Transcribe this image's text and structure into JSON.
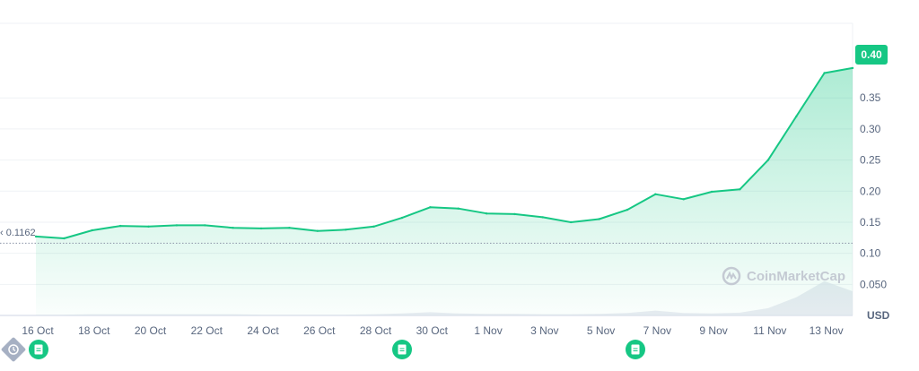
{
  "chart_data": {
    "type": "area",
    "x": [
      "16 Oct",
      "17 Oct",
      "18 Oct",
      "19 Oct",
      "20 Oct",
      "21 Oct",
      "22 Oct",
      "23 Oct",
      "24 Oct",
      "25 Oct",
      "26 Oct",
      "27 Oct",
      "28 Oct",
      "29 Oct",
      "30 Oct",
      "31 Oct",
      "1 Nov",
      "2 Nov",
      "3 Nov",
      "4 Nov",
      "5 Nov",
      "6 Nov",
      "7 Nov",
      "8 Nov",
      "9 Nov",
      "10 Nov",
      "11 Nov",
      "12 Nov",
      "13 Nov",
      "14 Nov"
    ],
    "values": [
      0.127,
      0.124,
      0.137,
      0.144,
      0.143,
      0.145,
      0.145,
      0.141,
      0.14,
      0.141,
      0.136,
      0.138,
      0.143,
      0.157,
      0.174,
      0.172,
      0.164,
      0.163,
      0.158,
      0.15,
      0.155,
      0.17,
      0.195,
      0.187,
      0.199,
      0.203,
      0.25,
      0.32,
      0.39,
      0.398
    ],
    "volume": [
      0.02,
      0.02,
      0.03,
      0.03,
      0.03,
      0.03,
      0.03,
      0.03,
      0.02,
      0.02,
      0.02,
      0.02,
      0.03,
      0.05,
      0.08,
      0.05,
      0.04,
      0.04,
      0.03,
      0.03,
      0.04,
      0.06,
      0.12,
      0.06,
      0.05,
      0.07,
      0.18,
      0.45,
      0.85,
      0.6
    ],
    "ylim": [
      0.0,
      0.47
    ],
    "yticks": [
      "0.050",
      "0.10",
      "0.15",
      "0.20",
      "0.25",
      "0.30",
      "0.35"
    ],
    "ytick_values": [
      0.05,
      0.1,
      0.15,
      0.2,
      0.25,
      0.3,
      0.35
    ],
    "xticks": [
      "16 Oct",
      "18 Oct",
      "20 Oct",
      "22 Oct",
      "24 Oct",
      "26 Oct",
      "28 Oct",
      "30 Oct",
      "1 Nov",
      "3 Nov",
      "5 Nov",
      "7 Nov",
      "9 Nov",
      "11 Nov",
      "13 Nov"
    ],
    "reference_line": {
      "value": 0.1162,
      "label": "0.1162"
    },
    "current_price": {
      "value": 0.4,
      "label": "0.40"
    },
    "currency": "USD",
    "grid": true,
    "line_color": "#16c784"
  },
  "watermark": {
    "text": "CoinMarketCap"
  },
  "markers": [
    {
      "name": "history-marker",
      "icon": "clock-icon"
    },
    {
      "name": "event-marker-1",
      "icon": "document-icon"
    },
    {
      "name": "event-marker-2",
      "icon": "document-icon"
    },
    {
      "name": "event-marker-3",
      "icon": "document-icon"
    }
  ],
  "colors": {
    "accent": "#16c784",
    "text": "#58667e",
    "grid": "#eff2f5",
    "watermark": "#c4cad3"
  }
}
